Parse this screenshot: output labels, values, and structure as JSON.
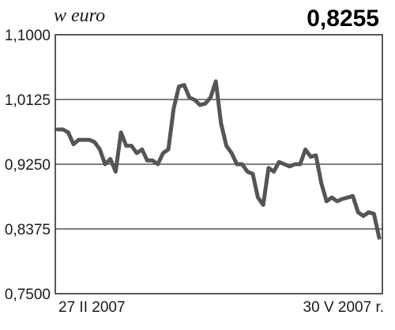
{
  "header": {
    "unit_label": "w euro",
    "current_value": "0,8255"
  },
  "chart_data": {
    "type": "line",
    "title": "",
    "xlabel": "",
    "ylabel": "w euro",
    "ylim": [
      0.75,
      1.1
    ],
    "yticks": [
      1.1,
      1.0125,
      0.925,
      0.8375,
      0.75
    ],
    "ytick_labels": [
      "1,1000",
      "1,0125",
      "0,9250",
      "0,8375",
      "0,7500"
    ],
    "x_start_label": "27 II 2007",
    "x_end_label": "30 V 2007 r.",
    "grid": true,
    "legend": "none",
    "colors": {
      "line": "#555555",
      "grid": "#333333",
      "frame": "#222222"
    },
    "series": [
      {
        "values": [
          0.972,
          0.972,
          0.968,
          0.952,
          0.958,
          0.958,
          0.958,
          0.955,
          0.945,
          0.925,
          0.932,
          0.915,
          0.968,
          0.95,
          0.95,
          0.94,
          0.945,
          0.93,
          0.93,
          0.925,
          0.94,
          0.945,
          1.0,
          1.03,
          1.032,
          1.015,
          1.012,
          1.005,
          1.007,
          1.015,
          1.037,
          0.98,
          0.95,
          0.94,
          0.925,
          0.925,
          0.915,
          0.912,
          0.88,
          0.87,
          0.92,
          0.915,
          0.928,
          0.925,
          0.922,
          0.925,
          0.925,
          0.945,
          0.935,
          0.937,
          0.9,
          0.875,
          0.88,
          0.875,
          0.878,
          0.88,
          0.882,
          0.86,
          0.855,
          0.86,
          0.858,
          0.8255
        ]
      }
    ]
  }
}
